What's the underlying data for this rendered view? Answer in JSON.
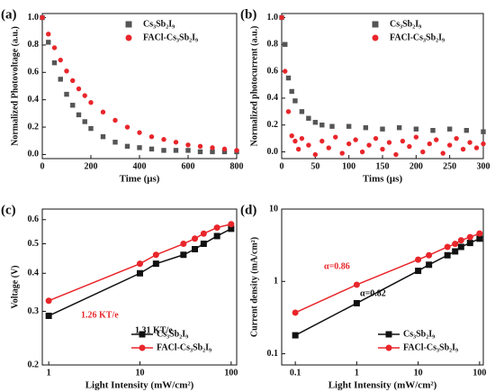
{
  "chart_data": [
    {
      "type": "scatter",
      "panel_label": "(a)",
      "xlabel": "Time (μs)",
      "ylabel": "Normalized Photovoltage (a.u.)",
      "xlim": [
        0,
        800
      ],
      "xticks": [
        0,
        200,
        400,
        600,
        800
      ],
      "ylim": [
        -0.03,
        1.03
      ],
      "yticks": [
        {
          "value": 0,
          "label": "0.0"
        },
        0.2,
        0.4,
        0.6,
        0.8,
        {
          "value": 1,
          "label": "1.0"
        }
      ],
      "legend": "upper right",
      "series": [
        {
          "name": "Cs₃Sb₂I₉",
          "color": "#555555",
          "marker": "square",
          "x": [
            0,
            25,
            50,
            75,
            100,
            125,
            150,
            175,
            200,
            250,
            300,
            350,
            400,
            450,
            500,
            550,
            600,
            650,
            700,
            750,
            800
          ],
          "values": [
            1.0,
            0.82,
            0.67,
            0.55,
            0.44,
            0.36,
            0.29,
            0.24,
            0.19,
            0.13,
            0.09,
            0.06,
            0.05,
            0.04,
            0.03,
            0.03,
            0.03,
            0.02,
            0.02,
            0.02,
            0.02
          ]
        },
        {
          "name": "FACl-Cs₃Sb₂I₉",
          "color": "#e8262b",
          "marker": "circle",
          "x": [
            0,
            25,
            50,
            75,
            100,
            125,
            150,
            175,
            200,
            250,
            300,
            350,
            400,
            450,
            500,
            550,
            600,
            650,
            700,
            750,
            800
          ],
          "values": [
            1.0,
            0.88,
            0.78,
            0.69,
            0.61,
            0.54,
            0.48,
            0.43,
            0.38,
            0.31,
            0.25,
            0.2,
            0.16,
            0.13,
            0.11,
            0.09,
            0.07,
            0.06,
            0.05,
            0.04,
            0.03
          ]
        }
      ]
    },
    {
      "type": "scatter",
      "panel_label": "(b)",
      "xlabel": "Tims (μs)",
      "ylabel": "Normalized photocurrent (a.u.)",
      "xlim": [
        0,
        300
      ],
      "xticks": [
        0,
        50,
        100,
        150,
        200,
        250,
        300
      ],
      "ylim": [
        -0.05,
        1.03
      ],
      "yticks": [
        {
          "value": 0,
          "label": "0.0"
        },
        0.2,
        0.4,
        0.6,
        0.8,
        {
          "value": 1,
          "label": "1.0"
        }
      ],
      "legend": "upper right",
      "series": [
        {
          "name": "Cs₃Sb₂I₉",
          "color": "#555555",
          "marker": "square",
          "x": [
            0,
            5,
            10,
            15,
            20,
            30,
            40,
            50,
            60,
            75,
            100,
            125,
            150,
            175,
            200,
            225,
            250,
            275,
            300
          ],
          "values": [
            1.0,
            0.8,
            0.55,
            0.45,
            0.38,
            0.3,
            0.25,
            0.22,
            0.2,
            0.19,
            0.19,
            0.18,
            0.17,
            0.18,
            0.17,
            0.16,
            0.17,
            0.16,
            0.15
          ]
        },
        {
          "name": "FACl-Cs₃Sb₂I₉",
          "color": "#e8262b",
          "marker": "circle",
          "x": [
            0,
            5,
            10,
            15,
            20,
            25,
            30,
            40,
            50,
            60,
            70,
            80,
            90,
            100,
            110,
            120,
            130,
            140,
            150,
            160,
            170,
            180,
            190,
            200,
            210,
            220,
            230,
            240,
            250,
            260,
            270,
            280,
            290,
            300
          ],
          "values": [
            1.0,
            0.6,
            0.3,
            0.12,
            0.08,
            0.02,
            0.1,
            0.05,
            -0.02,
            0.08,
            0.03,
            0.11,
            -0.01,
            0.06,
            0.09,
            0.0,
            0.05,
            0.1,
            0.02,
            0.07,
            -0.02,
            0.08,
            0.04,
            0.11,
            0.0,
            0.06,
            0.09,
            -0.01,
            0.05,
            0.1,
            0.02,
            0.07,
            0.03,
            0.06
          ]
        }
      ]
    },
    {
      "type": "line",
      "panel_label": "(c)",
      "xlabel": "Light Intensity (mW/cm²)",
      "ylabel": "Voltage (V)",
      "log_x": true,
      "log_y": true,
      "xlim": [
        0.85,
        115
      ],
      "xticks": [
        1,
        10,
        100
      ],
      "ylim": [
        0.2,
        0.65
      ],
      "yticks": [
        0.2,
        0.3,
        0.4,
        0.5,
        0.6
      ],
      "legend": "lower right",
      "annotations": [
        {
          "text": "1.26 KT/e",
          "color": "#e8262b"
        },
        {
          "text": "1.31 KT/e",
          "color": "#111111"
        }
      ],
      "series": [
        {
          "name": "Cs₃Sb₂I₉",
          "color": "#111111",
          "marker": "square",
          "x": [
            1,
            10,
            15,
            30,
            40,
            50,
            70,
            100
          ],
          "values": [
            0.29,
            0.4,
            0.43,
            0.46,
            0.48,
            0.5,
            0.53,
            0.56
          ]
        },
        {
          "name": "FACl-Cs₃Sb₂I₉",
          "color": "#e8262b",
          "marker": "circle",
          "x": [
            1,
            10,
            15,
            30,
            40,
            50,
            70,
            100
          ],
          "values": [
            0.325,
            0.43,
            0.46,
            0.5,
            0.52,
            0.54,
            0.565,
            0.58
          ]
        }
      ]
    },
    {
      "type": "line",
      "panel_label": "(d)",
      "xlabel": "Light Intensity (mW/cm²)",
      "ylabel": "Current density (mA/cm²)",
      "log_x": true,
      "log_y": true,
      "xlim": [
        0.06,
        115
      ],
      "xticks": [
        0.1,
        1,
        10,
        100
      ],
      "ylim": [
        0.07,
        10
      ],
      "yticks": [
        0.1,
        1,
        10
      ],
      "legend": "lower right",
      "annotations": [
        {
          "text": "α=0.86",
          "color": "#e8262b"
        },
        {
          "text": "α=0.82",
          "color": "#111111"
        }
      ],
      "series": [
        {
          "name": "Cs₃Sb₂I₉",
          "color": "#111111",
          "marker": "square",
          "x": [
            0.1,
            1,
            10,
            15,
            30,
            40,
            50,
            70,
            100
          ],
          "values": [
            0.18,
            0.5,
            1.4,
            1.7,
            2.3,
            2.6,
            3.0,
            3.4,
            3.9
          ]
        },
        {
          "name": "FACl-Cs₃Sb₂I₉",
          "color": "#e8262b",
          "marker": "circle",
          "x": [
            0.1,
            1,
            10,
            15,
            30,
            40,
            50,
            70,
            100
          ],
          "values": [
            0.37,
            0.9,
            2.0,
            2.3,
            3.0,
            3.3,
            3.7,
            4.1,
            4.6
          ]
        }
      ]
    }
  ]
}
